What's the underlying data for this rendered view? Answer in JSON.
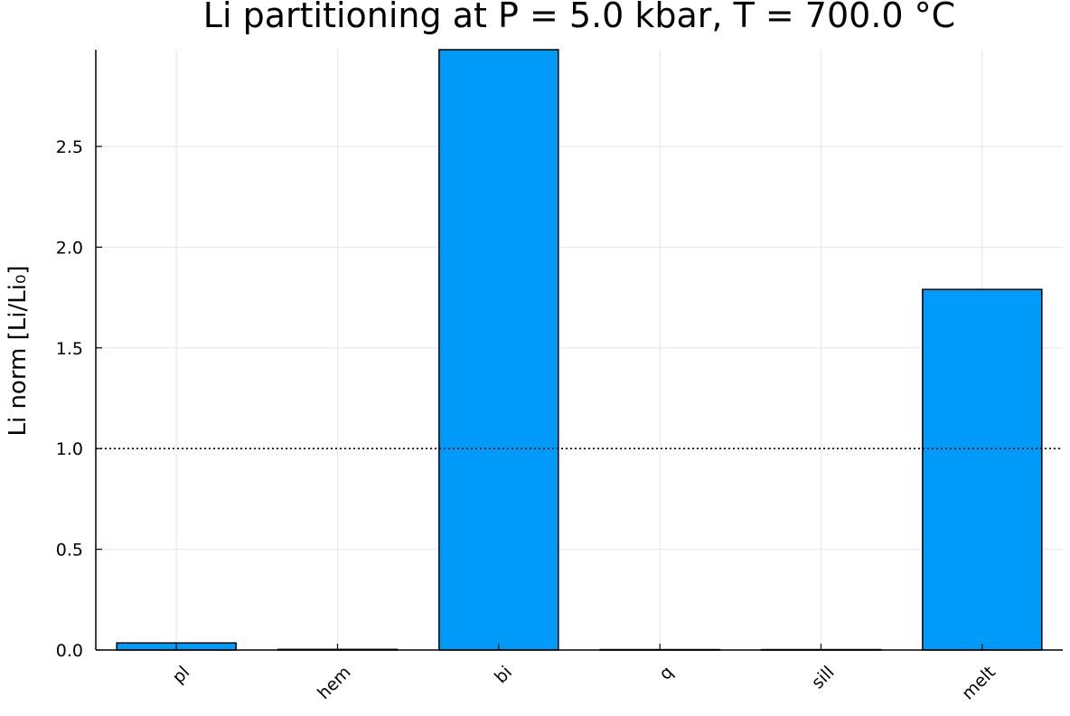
{
  "chart_data": {
    "type": "bar",
    "title": "Li partitioning at P = 5.0 kbar, T = 700.0 °C",
    "xlabel": "",
    "ylabel": "Li norm [Li/Li₀]",
    "categories": [
      "pl",
      "hem",
      "bi",
      "q",
      "sill",
      "melt"
    ],
    "values": [
      0.035,
      0.003,
      3.2,
      0.002,
      0.002,
      1.79
    ],
    "ylim": [
      0,
      2.98
    ],
    "yticks": [
      "0.0",
      "0.5",
      "1.0",
      "1.5",
      "2.0",
      "2.5"
    ],
    "reference_line": 1.0,
    "grid": true,
    "bar_color": "#009af9",
    "edge_color": "#000000"
  }
}
